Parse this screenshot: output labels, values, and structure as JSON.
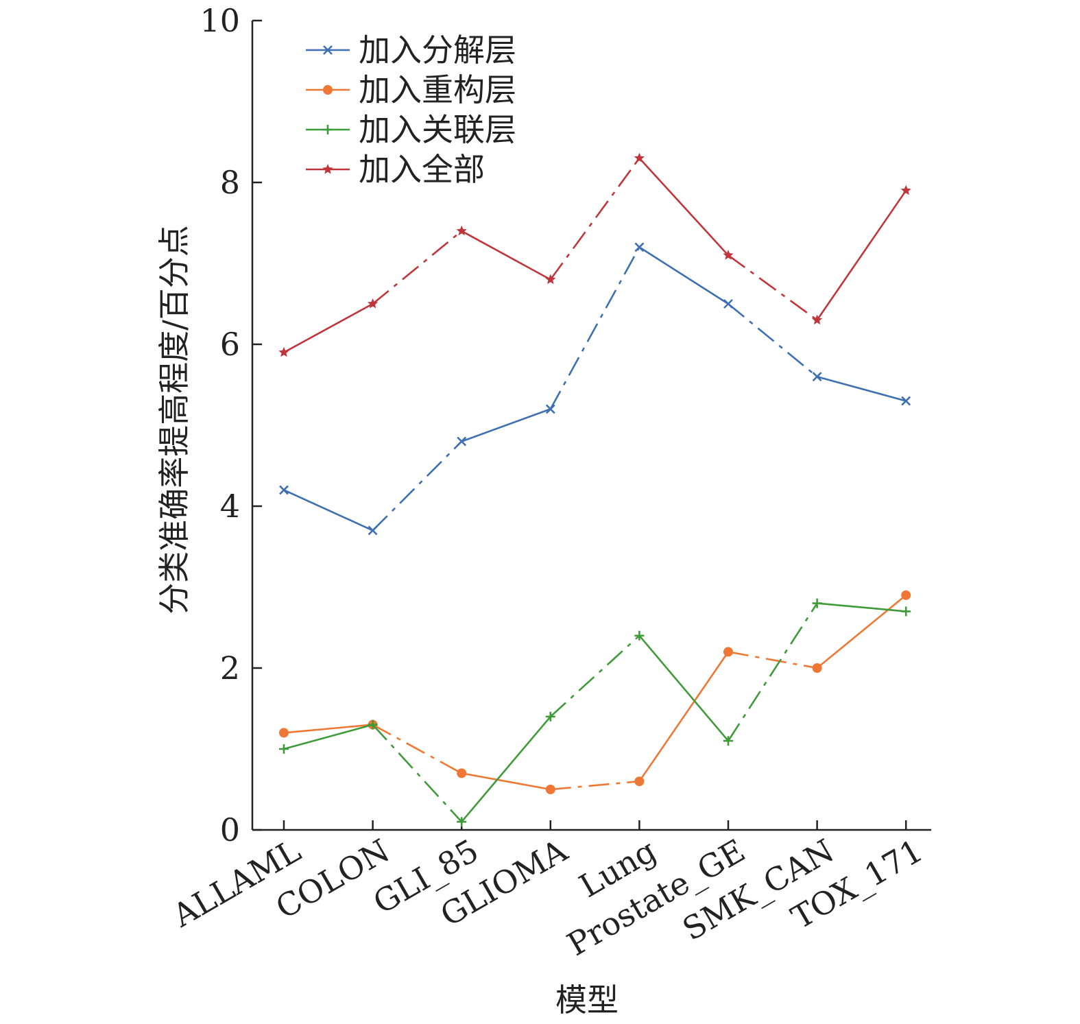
{
  "chart_data": {
    "type": "line",
    "title": "",
    "xlabel": "模型",
    "ylabel": "分类准确率提高程度/百分点",
    "categories": [
      "ALLAML",
      "COLON",
      "GLI_85",
      "GLIOMA",
      "Lung",
      "Prostate_GE",
      "SMK_CAN",
      "TOX_171"
    ],
    "ylim": [
      0,
      10
    ],
    "yticks": [
      0,
      2,
      4,
      6,
      8,
      10
    ],
    "ytick_labels": [
      "0",
      "2",
      "4",
      "6",
      "8",
      "10"
    ],
    "grid": false,
    "legend_position": "top-left",
    "series": [
      {
        "name": "加入分解层",
        "color": "#3e6fb0",
        "marker": "x",
        "values": [
          4.2,
          3.7,
          4.8,
          5.2,
          7.2,
          6.5,
          5.6,
          5.3
        ]
      },
      {
        "name": "加入重构层",
        "color": "#ee7733",
        "marker": "circle",
        "values": [
          1.2,
          1.3,
          0.7,
          0.5,
          0.6,
          2.2,
          2.0,
          2.9
        ]
      },
      {
        "name": "加入关联层",
        "color": "#3f9a3a",
        "marker": "plus",
        "values": [
          1.0,
          1.3,
          0.1,
          1.4,
          2.4,
          1.1,
          2.8,
          2.7
        ]
      },
      {
        "name": "加入全部",
        "color": "#c0353b",
        "marker": "star",
        "values": [
          5.9,
          6.5,
          7.4,
          6.8,
          8.3,
          7.1,
          6.3,
          7.9
        ]
      }
    ]
  }
}
